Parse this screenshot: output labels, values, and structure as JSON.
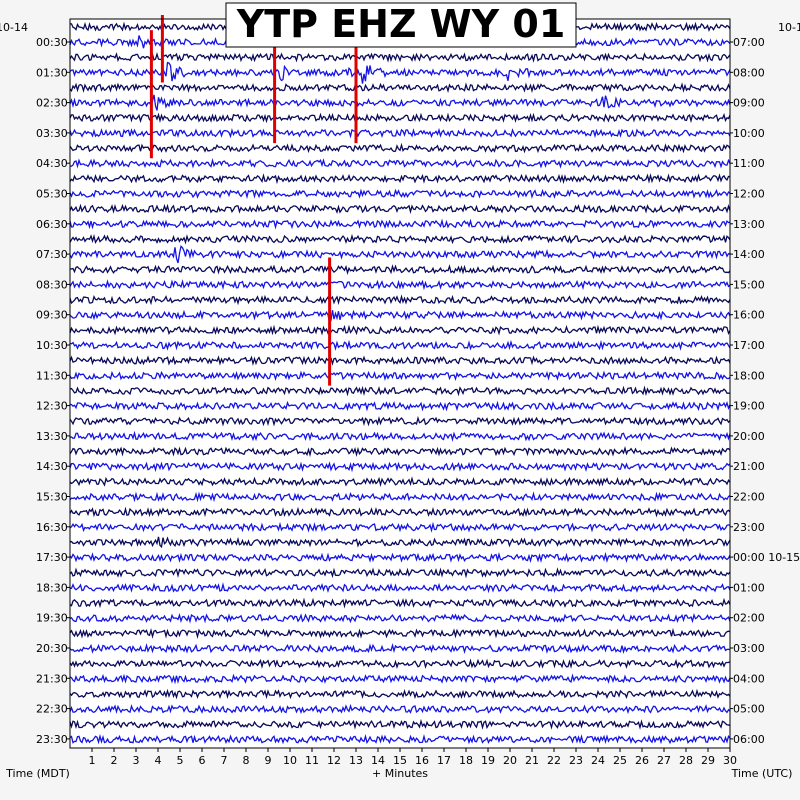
{
  "chart_data": {
    "type": "line",
    "title": "YTP EHZ WY 01",
    "date_left": "10-14",
    "date_right": "10-1",
    "left_axis_label": "Time (MDT)",
    "right_axis_label": "Time (UTC)",
    "x_axis_label": "+ Minutes",
    "x_ticks": [
      "1",
      "2",
      "3",
      "4",
      "5",
      "6",
      "7",
      "8",
      "9",
      "10",
      "11",
      "12",
      "13",
      "14",
      "15",
      "16",
      "17",
      "18",
      "19",
      "20",
      "21",
      "22",
      "23",
      "24",
      "25",
      "26",
      "27",
      "28",
      "29",
      "30"
    ],
    "xlim": [
      0,
      30
    ],
    "rows_per_hour": 2,
    "row_count": 48,
    "left_times": [
      "00:30",
      "01:30",
      "02:30",
      "03:30",
      "04:30",
      "05:30",
      "06:30",
      "07:30",
      "08:30",
      "09:30",
      "10:30",
      "11:30",
      "12:30",
      "13:30",
      "14:30",
      "15:30",
      "16:30",
      "17:30",
      "18:30",
      "19:30",
      "20:30",
      "21:30",
      "22:30",
      "23:30"
    ],
    "right_times": [
      "07:00",
      "08:00",
      "09:00",
      "10:00",
      "11:00",
      "12:00",
      "13:00",
      "14:00",
      "15:00",
      "16:00",
      "17:00",
      "18:00",
      "19:00",
      "20:00",
      "21:00",
      "22:00",
      "23:00",
      "00:00 10-15",
      "01:00",
      "02:00",
      "03:00",
      "04:00",
      "05:00",
      "06:00"
    ],
    "colors": {
      "dark_trace": "#0a0a5a",
      "light_trace": "#1414e6",
      "event_marker": "#e00000",
      "background": "#ffffff"
    },
    "trace_color_pattern": [
      "dark",
      "light"
    ],
    "events": [
      {
        "minute": 3.7,
        "row_start": 1,
        "row_end": 8
      },
      {
        "minute": 4.2,
        "row_start": 0,
        "row_end": 3
      },
      {
        "minute": 9.3,
        "row_start": 1,
        "row_end": 7
      },
      {
        "minute": 13.0,
        "row_start": 1,
        "row_end": 7
      },
      {
        "minute": 11.8,
        "row_start": 16,
        "row_end": 23
      }
    ],
    "bursts": [
      {
        "row": 3,
        "minute": 4.5,
        "amp": 2.6
      },
      {
        "row": 3,
        "minute": 9.6,
        "amp": 1.6
      },
      {
        "row": 3,
        "minute": 12.3,
        "amp": 1.6
      },
      {
        "row": 3,
        "minute": 13.4,
        "amp": 2.4
      },
      {
        "row": 3,
        "minute": 20.0,
        "amp": 1.8
      },
      {
        "row": 1,
        "minute": 3.2,
        "amp": 1.4
      },
      {
        "row": 5,
        "minute": 24.3,
        "amp": 1.8
      },
      {
        "row": 5,
        "minute": 3.8,
        "amp": 2.2
      },
      {
        "row": 15,
        "minute": 4.9,
        "amp": 2.6
      },
      {
        "row": 19,
        "minute": 11.9,
        "amp": 2.2
      },
      {
        "row": 34,
        "minute": 4.0,
        "amp": 1.6
      }
    ]
  }
}
